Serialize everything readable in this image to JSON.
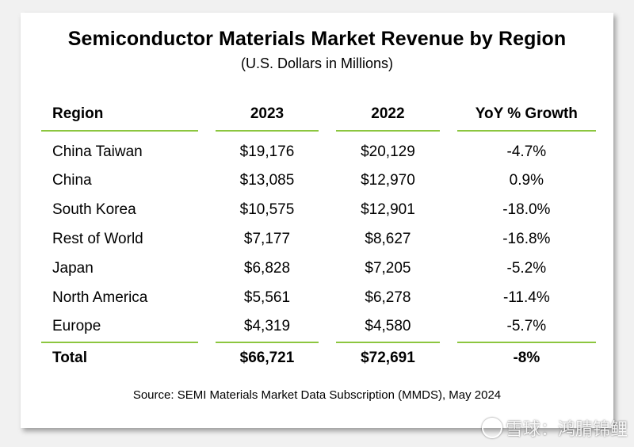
{
  "chart_data": {
    "type": "table",
    "title": "Semiconductor Materials Market Revenue by Region",
    "subtitle": "(U.S. Dollars in Millions)",
    "columns": [
      "Region",
      "2023",
      "2022",
      "YoY % Growth"
    ],
    "rows": [
      {
        "region": "China Taiwan",
        "y2023": "$19,176",
        "y2022": "$20,129",
        "yoy": "-4.7%"
      },
      {
        "region": "China",
        "y2023": "$13,085",
        "y2022": "$12,970",
        "yoy": "0.9%"
      },
      {
        "region": "South Korea",
        "y2023": "$10,575",
        "y2022": "$12,901",
        "yoy": "-18.0%"
      },
      {
        "region": "Rest of World",
        "y2023": "$7,177",
        "y2022": "$8,627",
        "yoy": "-16.8%"
      },
      {
        "region": "Japan",
        "y2023": "$6,828",
        "y2022": "$7,205",
        "yoy": "-5.2%"
      },
      {
        "region": "North America",
        "y2023": "$5,561",
        "y2022": "$6,278",
        "yoy": "-11.4%"
      },
      {
        "region": "Europe",
        "y2023": "$4,319",
        "y2022": "$4,580",
        "yoy": "-5.7%"
      }
    ],
    "total": {
      "region": "Total",
      "y2023": "$66,721",
      "y2022": "$72,691",
      "yoy": "-8%"
    },
    "source": "Source: SEMI Materials Market Data Subscription (MMDS), May 2024"
  },
  "watermark": {
    "text": "雪球：鸿腈锦鲤"
  },
  "colors": {
    "rule": "#8cc63f",
    "background": "#f1f1f1",
    "card": "#ffffff"
  }
}
